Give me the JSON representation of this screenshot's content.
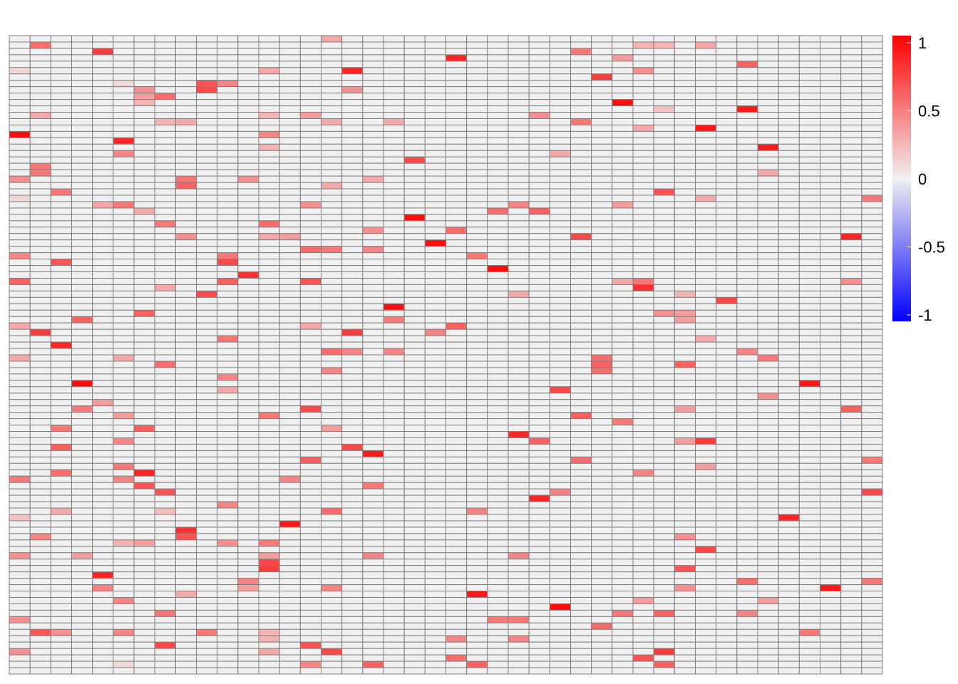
{
  "chart_data": {
    "type": "heatmap",
    "title": "",
    "xlabel": "",
    "ylabel": "",
    "n_cols": 42,
    "n_rows": 100,
    "value_range": [
      -1,
      1
    ],
    "legend_position": "right",
    "grid": true,
    "colors": {
      "low": "#0000ff",
      "mid": "#f0f0f0",
      "high": "#ff0000",
      "border": "#808080",
      "background": "#ffffff"
    },
    "legend": {
      "ticks": [
        {
          "value": 1,
          "label": "1"
        },
        {
          "value": 0.5,
          "label": "0.5"
        },
        {
          "value": 0,
          "label": "0"
        },
        {
          "value": -0.5,
          "label": "-0.5"
        },
        {
          "value": -1,
          "label": "-1"
        }
      ]
    },
    "cells": [
      [
        0,
        15,
        0.3
      ],
      [
        1,
        33,
        0.3
      ],
      [
        1,
        1,
        0.55
      ],
      [
        1,
        30,
        0.25
      ],
      [
        1,
        31,
        0.25
      ],
      [
        2,
        4,
        0.75
      ],
      [
        2,
        27,
        0.5
      ],
      [
        3,
        21,
        0.85
      ],
      [
        3,
        29,
        0.35
      ],
      [
        4,
        35,
        0.6
      ],
      [
        5,
        0,
        0.1
      ],
      [
        5,
        12,
        0.3
      ],
      [
        5,
        16,
        0.85
      ],
      [
        5,
        30,
        0.4
      ],
      [
        6,
        28,
        0.75
      ],
      [
        7,
        5,
        0.1
      ],
      [
        7,
        9,
        0.65
      ],
      [
        7,
        10,
        0.45
      ],
      [
        8,
        6,
        0.4
      ],
      [
        8,
        9,
        0.7
      ],
      [
        8,
        16,
        0.4
      ],
      [
        9,
        6,
        0.35
      ],
      [
        9,
        7,
        0.55
      ],
      [
        10,
        6,
        0.25
      ],
      [
        10,
        29,
        0.95
      ],
      [
        11,
        31,
        0.2
      ],
      [
        11,
        35,
        0.9
      ],
      [
        12,
        1,
        0.3
      ],
      [
        12,
        12,
        0.25
      ],
      [
        12,
        14,
        0.35
      ],
      [
        12,
        25,
        0.4
      ],
      [
        13,
        7,
        0.25
      ],
      [
        13,
        8,
        0.3
      ],
      [
        13,
        15,
        0.3
      ],
      [
        13,
        18,
        0.3
      ],
      [
        13,
        27,
        0.5
      ],
      [
        14,
        30,
        0.3
      ],
      [
        14,
        33,
        0.9
      ],
      [
        15,
        0,
        0.95
      ],
      [
        15,
        12,
        0.45
      ],
      [
        16,
        5,
        0.85
      ],
      [
        17,
        12,
        0.25
      ],
      [
        17,
        36,
        0.9
      ],
      [
        18,
        5,
        0.45
      ],
      [
        18,
        26,
        0.3
      ],
      [
        19,
        19,
        0.7
      ],
      [
        20,
        1,
        0.5
      ],
      [
        21,
        1,
        0.5
      ],
      [
        21,
        36,
        0.3
      ],
      [
        22,
        0,
        0.4
      ],
      [
        22,
        8,
        0.5
      ],
      [
        22,
        11,
        0.4
      ],
      [
        22,
        17,
        0.3
      ],
      [
        23,
        8,
        0.6
      ],
      [
        23,
        15,
        0.3
      ],
      [
        24,
        2,
        0.5
      ],
      [
        24,
        31,
        0.65
      ],
      [
        25,
        0,
        0.1
      ],
      [
        25,
        33,
        0.3
      ],
      [
        25,
        41,
        0.5
      ],
      [
        26,
        4,
        0.3
      ],
      [
        26,
        5,
        0.5
      ],
      [
        26,
        14,
        0.4
      ],
      [
        26,
        24,
        0.45
      ],
      [
        26,
        29,
        0.35
      ],
      [
        27,
        6,
        0.3
      ],
      [
        27,
        23,
        0.55
      ],
      [
        27,
        25,
        0.6
      ],
      [
        28,
        19,
        0.95
      ],
      [
        29,
        7,
        0.5
      ],
      [
        29,
        12,
        0.55
      ],
      [
        30,
        17,
        0.4
      ],
      [
        30,
        21,
        0.55
      ],
      [
        31,
        8,
        0.4
      ],
      [
        31,
        12,
        0.3
      ],
      [
        31,
        13,
        0.35
      ],
      [
        31,
        27,
        0.7
      ],
      [
        31,
        40,
        0.85
      ],
      [
        32,
        20,
        0.95
      ],
      [
        33,
        14,
        0.55
      ],
      [
        33,
        15,
        0.5
      ],
      [
        33,
        17,
        0.45
      ],
      [
        34,
        0,
        0.45
      ],
      [
        34,
        10,
        0.5
      ],
      [
        34,
        22,
        0.5
      ],
      [
        35,
        2,
        0.65
      ],
      [
        35,
        10,
        0.7
      ],
      [
        36,
        23,
        0.95
      ],
      [
        37,
        11,
        0.8
      ],
      [
        38,
        0,
        0.6
      ],
      [
        38,
        10,
        0.6
      ],
      [
        38,
        14,
        0.65
      ],
      [
        38,
        29,
        0.3
      ],
      [
        38,
        30,
        0.5
      ],
      [
        38,
        40,
        0.4
      ],
      [
        39,
        30,
        0.8
      ],
      [
        39,
        7,
        0.3
      ],
      [
        40,
        9,
        0.7
      ],
      [
        40,
        24,
        0.3
      ],
      [
        40,
        32,
        0.25
      ],
      [
        41,
        34,
        0.7
      ],
      [
        42,
        18,
        0.95
      ],
      [
        43,
        6,
        0.6
      ],
      [
        43,
        31,
        0.4
      ],
      [
        43,
        32,
        0.35
      ],
      [
        44,
        3,
        0.6
      ],
      [
        44,
        18,
        0.5
      ],
      [
        44,
        32,
        0.35
      ],
      [
        45,
        0,
        0.3
      ],
      [
        45,
        14,
        0.3
      ],
      [
        45,
        21,
        0.6
      ],
      [
        46,
        1,
        0.75
      ],
      [
        46,
        16,
        0.75
      ],
      [
        46,
        20,
        0.45
      ],
      [
        47,
        10,
        0.5
      ],
      [
        47,
        33,
        0.3
      ],
      [
        48,
        2,
        0.85
      ],
      [
        49,
        15,
        0.55
      ],
      [
        49,
        16,
        0.45
      ],
      [
        49,
        18,
        0.45
      ],
      [
        49,
        35,
        0.45
      ],
      [
        50,
        0,
        0.3
      ],
      [
        50,
        5,
        0.3
      ],
      [
        50,
        28,
        0.55
      ],
      [
        50,
        36,
        0.5
      ],
      [
        51,
        7,
        0.55
      ],
      [
        51,
        28,
        0.6
      ],
      [
        51,
        32,
        0.6
      ],
      [
        52,
        15,
        0.45
      ],
      [
        52,
        28,
        0.55
      ],
      [
        53,
        10,
        0.45
      ],
      [
        54,
        3,
        0.95
      ],
      [
        54,
        38,
        0.9
      ],
      [
        55,
        10,
        0.3
      ],
      [
        55,
        26,
        0.7
      ],
      [
        56,
        36,
        0.4
      ],
      [
        57,
        4,
        0.35
      ],
      [
        58,
        3,
        0.5
      ],
      [
        58,
        14,
        0.7
      ],
      [
        58,
        32,
        0.35
      ],
      [
        58,
        40,
        0.6
      ],
      [
        59,
        5,
        0.35
      ],
      [
        59,
        12,
        0.5
      ],
      [
        59,
        27,
        0.6
      ],
      [
        60,
        29,
        0.5
      ],
      [
        61,
        2,
        0.5
      ],
      [
        61,
        6,
        0.6
      ],
      [
        61,
        15,
        0.35
      ],
      [
        62,
        24,
        0.85
      ],
      [
        63,
        5,
        0.45
      ],
      [
        63,
        25,
        0.6
      ],
      [
        63,
        32,
        0.35
      ],
      [
        63,
        33,
        0.75
      ],
      [
        64,
        2,
        0.6
      ],
      [
        64,
        16,
        0.7
      ],
      [
        65,
        17,
        0.9
      ],
      [
        66,
        14,
        0.6
      ],
      [
        66,
        27,
        0.55
      ],
      [
        66,
        41,
        0.5
      ],
      [
        67,
        5,
        0.5
      ],
      [
        67,
        33,
        0.35
      ],
      [
        68,
        2,
        0.55
      ],
      [
        68,
        6,
        0.85
      ],
      [
        68,
        30,
        0.45
      ],
      [
        69,
        0,
        0.5
      ],
      [
        69,
        5,
        0.45
      ],
      [
        69,
        13,
        0.45
      ],
      [
        70,
        6,
        0.65
      ],
      [
        70,
        17,
        0.5
      ],
      [
        71,
        7,
        0.65
      ],
      [
        71,
        26,
        0.45
      ],
      [
        71,
        41,
        0.7
      ],
      [
        72,
        25,
        0.85
      ],
      [
        73,
        10,
        0.45
      ],
      [
        74,
        2,
        0.3
      ],
      [
        74,
        7,
        0.2
      ],
      [
        74,
        15,
        0.55
      ],
      [
        74,
        22,
        0.45
      ],
      [
        75,
        0,
        0.2
      ],
      [
        75,
        37,
        0.85
      ],
      [
        76,
        13,
        0.9
      ],
      [
        77,
        8,
        0.8
      ],
      [
        78,
        8,
        0.65
      ],
      [
        78,
        1,
        0.45
      ],
      [
        78,
        32,
        0.4
      ],
      [
        79,
        5,
        0.25
      ],
      [
        79,
        6,
        0.35
      ],
      [
        79,
        10,
        0.4
      ],
      [
        79,
        12,
        0.5
      ],
      [
        80,
        33,
        0.7
      ],
      [
        81,
        0,
        0.4
      ],
      [
        81,
        3,
        0.35
      ],
      [
        81,
        12,
        0.35
      ],
      [
        81,
        17,
        0.45
      ],
      [
        81,
        24,
        0.45
      ],
      [
        82,
        12,
        0.7
      ],
      [
        83,
        12,
        0.75
      ],
      [
        83,
        32,
        0.65
      ],
      [
        84,
        4,
        0.85
      ],
      [
        85,
        11,
        0.45
      ],
      [
        85,
        35,
        0.55
      ],
      [
        85,
        41,
        0.5
      ],
      [
        86,
        4,
        0.45
      ],
      [
        86,
        11,
        0.35
      ],
      [
        86,
        15,
        0.45
      ],
      [
        86,
        32,
        0.4
      ],
      [
        86,
        39,
        0.9
      ],
      [
        87,
        8,
        0.3
      ],
      [
        87,
        22,
        0.9
      ],
      [
        88,
        5,
        0.45
      ],
      [
        88,
        30,
        0.35
      ],
      [
        88,
        36,
        0.35
      ],
      [
        89,
        26,
        0.95
      ],
      [
        90,
        7,
        0.5
      ],
      [
        90,
        29,
        0.5
      ],
      [
        90,
        31,
        0.6
      ],
      [
        90,
        35,
        0.45
      ],
      [
        91,
        0,
        0.4
      ],
      [
        91,
        23,
        0.5
      ],
      [
        91,
        24,
        0.5
      ],
      [
        92,
        28,
        0.55
      ],
      [
        93,
        1,
        0.65
      ],
      [
        93,
        2,
        0.4
      ],
      [
        93,
        5,
        0.45
      ],
      [
        93,
        9,
        0.5
      ],
      [
        93,
        12,
        0.25
      ],
      [
        93,
        38,
        0.5
      ],
      [
        94,
        12,
        0.25
      ],
      [
        94,
        21,
        0.45
      ],
      [
        94,
        24,
        0.45
      ],
      [
        95,
        7,
        0.7
      ],
      [
        95,
        14,
        0.65
      ],
      [
        96,
        0,
        0.4
      ],
      [
        96,
        12,
        0.3
      ],
      [
        96,
        15,
        0.7
      ],
      [
        96,
        31,
        0.75
      ],
      [
        97,
        21,
        0.55
      ],
      [
        97,
        30,
        0.65
      ],
      [
        98,
        5,
        0.1
      ],
      [
        98,
        14,
        0.45
      ],
      [
        98,
        17,
        0.6
      ],
      [
        98,
        22,
        0.6
      ],
      [
        98,
        31,
        0.6
      ]
    ]
  }
}
